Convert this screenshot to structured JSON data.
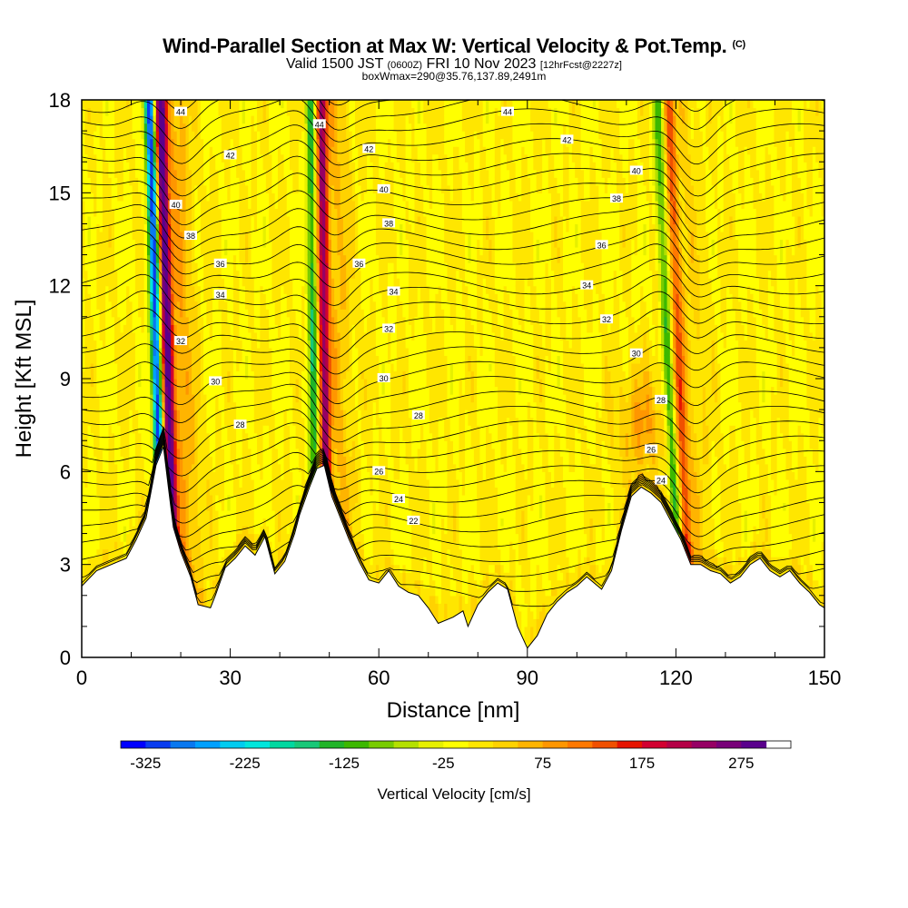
{
  "title": {
    "main": "Wind-Parallel Section at Max W: Vertical Velocity & Pot.Temp.",
    "copyright": "(C)",
    "valid_prefix": "Valid 1500 JST",
    "valid_z": "(0600Z)",
    "valid_date": "FRI 10 Nov 2023",
    "valid_fcst": "[12hrFcst@2227z]",
    "box": "boxWmax=290@35.76,137.89,2491m"
  },
  "chart_data": {
    "type": "heatmap",
    "xlabel": "Distance [nm]",
    "ylabel": "Height [Kft MSL]",
    "xlim": [
      0,
      150
    ],
    "ylim": [
      0,
      18
    ],
    "x_ticks": [
      "0",
      "30",
      "60",
      "90",
      "120",
      "150"
    ],
    "y_ticks": [
      "0",
      "3",
      "6",
      "9",
      "12",
      "15",
      "18"
    ],
    "colorbar": {
      "title": "Vertical Velocity [cm/s]",
      "min": -350,
      "max": 325,
      "step": 25,
      "tick_labels": [
        "-325",
        "-225",
        "-125",
        "-25",
        "75",
        "175",
        "275"
      ],
      "tick_values": [
        -325,
        -225,
        -125,
        -25,
        75,
        175,
        275
      ],
      "colors": [
        "#0000ff",
        "#0a3cf0",
        "#0a78f0",
        "#00a0ff",
        "#00ccf0",
        "#00e6dc",
        "#00d8a0",
        "#18c878",
        "#20b428",
        "#3cb800",
        "#78cc00",
        "#b4e000",
        "#e6f000",
        "#ffff00",
        "#ffe600",
        "#ffd200",
        "#ffb400",
        "#ff9600",
        "#ff7800",
        "#f05000",
        "#e61400",
        "#d20030",
        "#b40046",
        "#960064",
        "#780078",
        "#5a008c"
      ]
    },
    "terrain_kft": [
      [
        0,
        2.3
      ],
      [
        3,
        2.8
      ],
      [
        6,
        3.0
      ],
      [
        9,
        3.2
      ],
      [
        11,
        3.8
      ],
      [
        13,
        4.5
      ],
      [
        15,
        6.2
      ],
      [
        16.5,
        6.8
      ],
      [
        17.5,
        5.5
      ],
      [
        18.5,
        4.2
      ],
      [
        20,
        3.4
      ],
      [
        22,
        2.6
      ],
      [
        23.5,
        1.7
      ],
      [
        26,
        1.6
      ],
      [
        27,
        2.0
      ],
      [
        29,
        2.9
      ],
      [
        31,
        3.2
      ],
      [
        33,
        3.6
      ],
      [
        35,
        3.3
      ],
      [
        37,
        3.9
      ],
      [
        39,
        2.7
      ],
      [
        41,
        3.1
      ],
      [
        43,
        4.0
      ],
      [
        44,
        4.6
      ],
      [
        46,
        5.5
      ],
      [
        47.5,
        6.1
      ],
      [
        49,
        6.2
      ],
      [
        50.5,
        5.2
      ],
      [
        52,
        4.6
      ],
      [
        54,
        3.8
      ],
      [
        56,
        3.1
      ],
      [
        58,
        2.5
      ],
      [
        60,
        2.4
      ],
      [
        62,
        2.8
      ],
      [
        64,
        2.3
      ],
      [
        66,
        2.1
      ],
      [
        68,
        2.0
      ],
      [
        70,
        1.6
      ],
      [
        72,
        1.1
      ],
      [
        75,
        1.3
      ],
      [
        77,
        1.5
      ],
      [
        78,
        1.0
      ],
      [
        80,
        1.7
      ],
      [
        82,
        2.1
      ],
      [
        84,
        2.4
      ],
      [
        86,
        2.2
      ],
      [
        88,
        1.0
      ],
      [
        90,
        0.3
      ],
      [
        92,
        0.7
      ],
      [
        94,
        1.4
      ],
      [
        96,
        1.8
      ],
      [
        98,
        2.1
      ],
      [
        100,
        2.3
      ],
      [
        102,
        2.6
      ],
      [
        105,
        2.2
      ],
      [
        107,
        2.8
      ],
      [
        109,
        4.1
      ],
      [
        111,
        5.2
      ],
      [
        113,
        5.5
      ],
      [
        115,
        5.3
      ],
      [
        117,
        5.0
      ],
      [
        119,
        4.4
      ],
      [
        121,
        3.8
      ],
      [
        123,
        3.0
      ],
      [
        125,
        3.0
      ],
      [
        127,
        2.8
      ],
      [
        129,
        2.7
      ],
      [
        131,
        2.4
      ],
      [
        133,
        2.6
      ],
      [
        135,
        3.0
      ],
      [
        137,
        3.2
      ],
      [
        139,
        2.8
      ],
      [
        141,
        2.6
      ],
      [
        143,
        2.8
      ],
      [
        145,
        2.4
      ],
      [
        147,
        2.1
      ],
      [
        149,
        1.7
      ],
      [
        150,
        1.6
      ]
    ],
    "updraft_bands": [
      {
        "x_bottom": 17,
        "x_top": 14.5,
        "peak_w": 290,
        "min_w": -325
      },
      {
        "x_bottom": 48,
        "x_top": 47,
        "peak_w": 220,
        "min_w": -150
      },
      {
        "x_bottom": 121,
        "x_top": 117,
        "peak_w": 125,
        "min_w": -125
      }
    ],
    "theta_contours": [
      {
        "label": "22",
        "x": 67,
        "y_kft": 4.4
      },
      {
        "label": "24",
        "x": 64,
        "y_kft": 5.1
      },
      {
        "label": "24",
        "x": 117,
        "y_kft": 5.7
      },
      {
        "label": "26",
        "x": 60,
        "y_kft": 6.0
      },
      {
        "label": "26",
        "x": 115,
        "y_kft": 6.7
      },
      {
        "label": "28",
        "x": 32,
        "y_kft": 7.5
      },
      {
        "label": "28",
        "x": 68,
        "y_kft": 7.8
      },
      {
        "label": "28",
        "x": 117,
        "y_kft": 8.3
      },
      {
        "label": "30",
        "x": 27,
        "y_kft": 8.9
      },
      {
        "label": "30",
        "x": 61,
        "y_kft": 9.0
      },
      {
        "label": "30",
        "x": 112,
        "y_kft": 9.8
      },
      {
        "label": "32",
        "x": 20,
        "y_kft": 10.2
      },
      {
        "label": "32",
        "x": 62,
        "y_kft": 10.6
      },
      {
        "label": "32",
        "x": 106,
        "y_kft": 10.9
      },
      {
        "label": "34",
        "x": 28,
        "y_kft": 11.7
      },
      {
        "label": "34",
        "x": 63,
        "y_kft": 11.8
      },
      {
        "label": "34",
        "x": 102,
        "y_kft": 12.0
      },
      {
        "label": "36",
        "x": 28,
        "y_kft": 12.7
      },
      {
        "label": "36",
        "x": 56,
        "y_kft": 12.7
      },
      {
        "label": "36",
        "x": 105,
        "y_kft": 13.3
      },
      {
        "label": "38",
        "x": 22,
        "y_kft": 13.6
      },
      {
        "label": "38",
        "x": 62,
        "y_kft": 14.0
      },
      {
        "label": "38",
        "x": 108,
        "y_kft": 14.8
      },
      {
        "label": "40",
        "x": 19,
        "y_kft": 14.6
      },
      {
        "label": "40",
        "x": 61,
        "y_kft": 15.1
      },
      {
        "label": "40",
        "x": 112,
        "y_kft": 15.7
      },
      {
        "label": "42",
        "x": 30,
        "y_kft": 16.2
      },
      {
        "label": "42",
        "x": 58,
        "y_kft": 16.4
      },
      {
        "label": "42",
        "x": 98,
        "y_kft": 16.7
      },
      {
        "label": "44",
        "x": 20,
        "y_kft": 17.6
      },
      {
        "label": "44",
        "x": 48,
        "y_kft": 17.2
      },
      {
        "label": "44",
        "x": 86,
        "y_kft": 17.6
      }
    ]
  }
}
